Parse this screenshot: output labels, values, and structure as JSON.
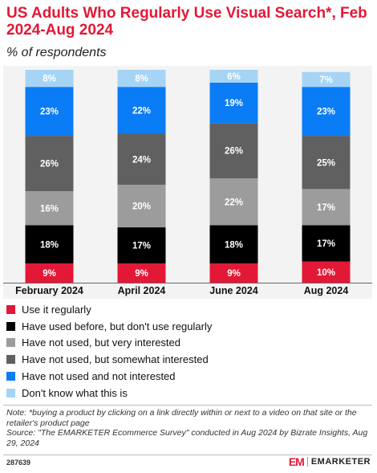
{
  "header": {
    "title": "US Adults Who Regularly Use Visual Search*, Feb 2024-Aug 2024",
    "subtitle": "% of respondents"
  },
  "colors": {
    "use_regularly": "#e31836",
    "used_before": "#000000",
    "very_interested": "#9c9c9c",
    "somewhat_interested": "#606060",
    "not_interested": "#0a7cf5",
    "dont_know": "#a6d4f5"
  },
  "chart_data": {
    "type": "bar",
    "stacked": true,
    "categories": [
      "February 2024",
      "April 2024",
      "June 2024",
      "Aug 2024"
    ],
    "series": [
      {
        "name": "Use it regularly",
        "color": "#e31836",
        "label_color": "#ffffff",
        "values": [
          9,
          9,
          9,
          10
        ]
      },
      {
        "name": "Have used before, but don't use regularly",
        "color": "#000000",
        "label_color": "#ffffff",
        "values": [
          18,
          17,
          18,
          17
        ]
      },
      {
        "name": "Have not used, but very interested",
        "color": "#9c9c9c",
        "label_color": "#ffffff",
        "values": [
          16,
          20,
          22,
          17
        ]
      },
      {
        "name": "Have not used, but somewhat interested",
        "color": "#606060",
        "label_color": "#ffffff",
        "values": [
          26,
          24,
          26,
          25
        ]
      },
      {
        "name": "Have not used and not interested",
        "color": "#0a7cf5",
        "label_color": "#ffffff",
        "values": [
          23,
          22,
          19,
          23
        ]
      },
      {
        "name": "Don't know what this is",
        "color": "#a6d4f5",
        "label_color": "#ffffff",
        "values": [
          8,
          8,
          6,
          7
        ]
      }
    ],
    "value_suffix": "%",
    "ylim": [
      0,
      100
    ],
    "grid": false,
    "legend_placement": "bottom"
  },
  "legend": {
    "items": [
      "Use it regularly",
      "Have used before, but don't use regularly",
      "Have not used, but very interested",
      "Have not used, but somewhat interested",
      "Have not used and not interested",
      "Don't know what this is"
    ]
  },
  "notes": {
    "note": "Note: *buying a product by clicking on a link directly within or next to a video on that site or the retailer's product page",
    "source": "Source: \"The EMARKETER Ecommerce Survey\" conducted in Aug 2024 by Bizrate Insights, Aug 29, 2024"
  },
  "footer": {
    "chart_id": "287639",
    "brand_name": "EMARKETER",
    "brand_mark": "EM"
  }
}
